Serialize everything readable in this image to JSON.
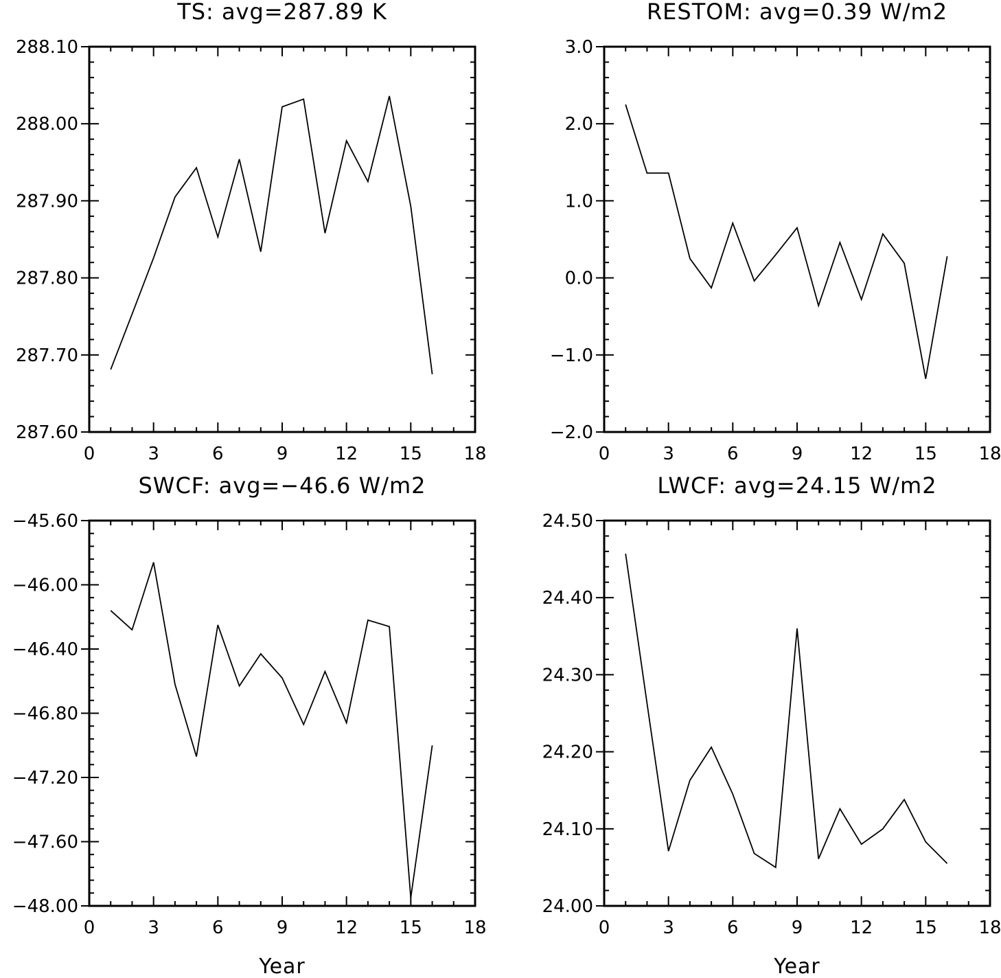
{
  "chart_data": [
    {
      "type": "line",
      "title": "TS: avg=287.89 K",
      "xlabel": "",
      "ylabel": "",
      "xlim": [
        0,
        18
      ],
      "ylim": [
        287.6,
        288.1
      ],
      "xticks": [
        "0",
        "3",
        "6",
        "9",
        "12",
        "15",
        "18"
      ],
      "yticks": [
        "287.60",
        "287.70",
        "287.80",
        "287.90",
        "288.00",
        "288.10"
      ],
      "x": [
        1,
        2,
        3,
        4,
        5,
        6,
        7,
        8,
        9,
        10,
        11,
        12,
        13,
        14,
        15,
        16
      ],
      "values": [
        287.681,
        287.753,
        287.826,
        287.905,
        287.943,
        287.853,
        287.954,
        287.834,
        288.022,
        288.032,
        287.858,
        287.978,
        287.925,
        288.036,
        287.893,
        287.675
      ],
      "line_color": "#000000"
    },
    {
      "type": "line",
      "title": "RESTOM: avg=0.39 W/m2",
      "xlabel": "",
      "ylabel": "",
      "xlim": [
        0,
        18
      ],
      "ylim": [
        -2.0,
        3.0
      ],
      "xticks": [
        "0",
        "3",
        "6",
        "9",
        "12",
        "15",
        "18"
      ],
      "yticks": [
        "−2.0",
        "−1.0",
        "0.0",
        "1.0",
        "2.0",
        "3.0"
      ],
      "x": [
        1,
        2,
        3,
        4,
        5,
        6,
        7,
        8,
        9,
        10,
        11,
        12,
        13,
        14,
        15,
        16
      ],
      "values": [
        2.25,
        1.36,
        1.36,
        0.25,
        -0.13,
        0.71,
        -0.04,
        0.3,
        0.65,
        -0.36,
        0.46,
        -0.28,
        0.57,
        0.19,
        -1.31,
        0.28
      ],
      "line_color": "#000000"
    },
    {
      "type": "line",
      "title": "SWCF: avg=−46.6 W/m2",
      "xlabel": "Year",
      "ylabel": "",
      "xlim": [
        0,
        18
      ],
      "ylim": [
        -48.0,
        -45.6
      ],
      "xticks": [
        "0",
        "3",
        "6",
        "9",
        "12",
        "15",
        "18"
      ],
      "yticks": [
        "−48.00",
        "−47.60",
        "−47.20",
        "−46.80",
        "−46.40",
        "−46.00",
        "−45.60"
      ],
      "x": [
        1,
        2,
        3,
        4,
        5,
        6,
        7,
        8,
        9,
        10,
        11,
        12,
        13,
        14,
        15,
        16
      ],
      "values": [
        -46.16,
        -46.28,
        -45.86,
        -46.62,
        -47.07,
        -46.25,
        -46.63,
        -46.43,
        -46.58,
        -46.87,
        -46.54,
        -46.86,
        -46.22,
        -46.26,
        -47.95,
        -47.0
      ],
      "line_color": "#000000"
    },
    {
      "type": "line",
      "title": "LWCF: avg=24.15 W/m2",
      "xlabel": "Year",
      "ylabel": "",
      "xlim": [
        0,
        18
      ],
      "ylim": [
        24.0,
        24.5
      ],
      "xticks": [
        "0",
        "3",
        "6",
        "9",
        "12",
        "15",
        "18"
      ],
      "yticks": [
        "24.00",
        "24.10",
        "24.20",
        "24.30",
        "24.40",
        "24.50"
      ],
      "x": [
        1,
        2,
        3,
        4,
        5,
        6,
        7,
        8,
        9,
        10,
        11,
        12,
        13,
        14,
        15,
        16
      ],
      "values": [
        24.457,
        24.263,
        24.071,
        24.163,
        24.206,
        24.145,
        24.068,
        24.05,
        24.36,
        24.061,
        24.126,
        24.08,
        24.1,
        24.138,
        24.083,
        24.055
      ],
      "line_color": "#000000"
    }
  ]
}
